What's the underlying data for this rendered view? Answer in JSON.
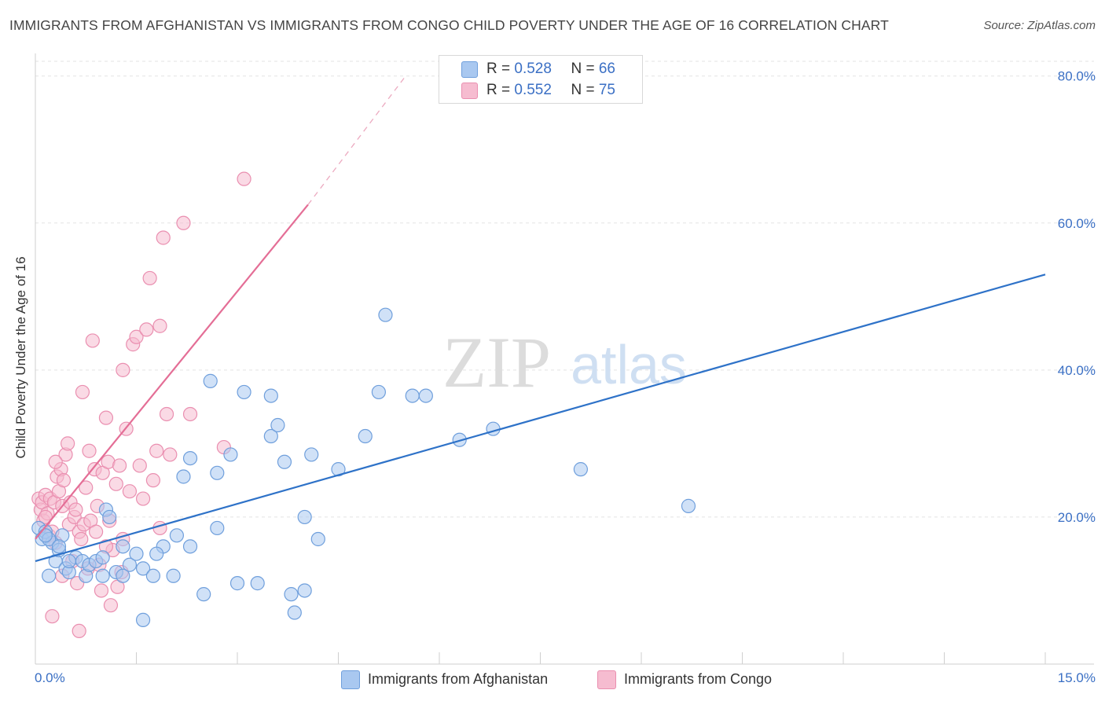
{
  "title": "IMMIGRANTS FROM AFGHANISTAN VS IMMIGRANTS FROM CONGO CHILD POVERTY UNDER THE AGE OF 16 CORRELATION CHART",
  "source": "Source: ZipAtlas.com",
  "watermark": {
    "zip": "ZIP",
    "atlas": "atlas"
  },
  "legend_stats": [
    {
      "r_label": "R = ",
      "r_value": "0.528",
      "n_label": "N = ",
      "n_value": "66"
    },
    {
      "r_label": "R = ",
      "r_value": "0.552",
      "n_label": "N = ",
      "n_value": "75"
    }
  ],
  "colors": {
    "blue_fill": "#a9c8f0",
    "blue_stroke": "#6f9fdc",
    "blue_line": "#2e72c8",
    "pink_fill": "#f6bcd0",
    "pink_stroke": "#ea8fb0",
    "pink_line": "#e46e96",
    "tick_text": "#3a6fc4",
    "grid": "#e3e3e3"
  },
  "chart_data": {
    "type": "scatter",
    "title": "IMMIGRANTS FROM AFGHANISTAN VS IMMIGRANTS FROM CONGO CHILD POVERTY UNDER THE AGE OF 16 CORRELATION CHART",
    "xlabel": "",
    "ylabel": "Child Poverty Under the Age of 16",
    "xlim": [
      0,
      15
    ],
    "ylim": [
      0,
      82
    ],
    "x_tick_labels": [
      "0.0%",
      "15.0%"
    ],
    "y_ticks": [
      20,
      40,
      60,
      80
    ],
    "y_tick_labels": [
      "20.0%",
      "40.0%",
      "60.0%",
      "80.0%"
    ],
    "legend": [
      "Immigrants from Afghanistan",
      "Immigrants from Congo"
    ],
    "series": [
      {
        "name": "Immigrants from Afghanistan",
        "r": 0.528,
        "n": 66,
        "trend": {
          "x": [
            0,
            15
          ],
          "y": [
            14.0,
            53.0
          ]
        },
        "points": [
          [
            0.05,
            18.5
          ],
          [
            0.1,
            17.0
          ],
          [
            0.15,
            18.0
          ],
          [
            0.2,
            12.0
          ],
          [
            0.25,
            16.5
          ],
          [
            0.3,
            14.0
          ],
          [
            0.35,
            15.5
          ],
          [
            0.4,
            17.5
          ],
          [
            0.45,
            13.0
          ],
          [
            0.5,
            12.5
          ],
          [
            0.6,
            14.5
          ],
          [
            0.7,
            14.0
          ],
          [
            0.75,
            12.0
          ],
          [
            0.8,
            13.5
          ],
          [
            0.9,
            14.0
          ],
          [
            1.0,
            14.5
          ],
          [
            1.05,
            21.0
          ],
          [
            1.1,
            20.0
          ],
          [
            1.2,
            12.5
          ],
          [
            1.3,
            16.0
          ],
          [
            1.4,
            13.5
          ],
          [
            1.5,
            15.0
          ],
          [
            1.6,
            13.0
          ],
          [
            1.75,
            12.0
          ],
          [
            1.9,
            16.0
          ],
          [
            2.1,
            17.5
          ],
          [
            2.2,
            25.5
          ],
          [
            2.3,
            28.0
          ],
          [
            2.3,
            16.0
          ],
          [
            2.5,
            9.5
          ],
          [
            2.6,
            38.5
          ],
          [
            2.7,
            26.0
          ],
          [
            2.7,
            18.5
          ],
          [
            2.9,
            28.5
          ],
          [
            3.0,
            11.0
          ],
          [
            3.1,
            37.0
          ],
          [
            3.3,
            11.0
          ],
          [
            3.5,
            31.0
          ],
          [
            3.5,
            36.5
          ],
          [
            3.6,
            32.5
          ],
          [
            3.7,
            27.5
          ],
          [
            3.8,
            9.5
          ],
          [
            4.0,
            20.0
          ],
          [
            4.1,
            28.5
          ],
          [
            4.2,
            17.0
          ],
          [
            4.5,
            26.5
          ],
          [
            4.9,
            31.0
          ],
          [
            5.1,
            37.0
          ],
          [
            5.2,
            47.5
          ],
          [
            5.6,
            36.5
          ],
          [
            5.8,
            36.5
          ],
          [
            6.3,
            30.5
          ],
          [
            6.8,
            32.0
          ],
          [
            8.1,
            26.5
          ],
          [
            9.7,
            21.5
          ],
          [
            4.0,
            10.0
          ],
          [
            1.0,
            12.0
          ],
          [
            1.3,
            12.0
          ],
          [
            0.2,
            17.0
          ],
          [
            0.15,
            17.5
          ],
          [
            0.35,
            16.0
          ],
          [
            2.05,
            12.0
          ],
          [
            1.6,
            6.0
          ],
          [
            3.85,
            7.0
          ],
          [
            1.8,
            15.0
          ],
          [
            0.5,
            14.0
          ]
        ]
      },
      {
        "name": "Immigrants from Congo",
        "r": 0.552,
        "n": 75,
        "trend": {
          "x": [
            0,
            4.05
          ],
          "y": [
            17.0,
            62.5
          ]
        },
        "trend_dashed": {
          "x": [
            4.05,
            5.5
          ],
          "y": [
            62.5,
            80.0
          ]
        },
        "points": [
          [
            0.05,
            22.5
          ],
          [
            0.08,
            21.0
          ],
          [
            0.1,
            22.0
          ],
          [
            0.12,
            19.5
          ],
          [
            0.15,
            23.0
          ],
          [
            0.18,
            20.5
          ],
          [
            0.2,
            17.5
          ],
          [
            0.22,
            22.5
          ],
          [
            0.25,
            18.0
          ],
          [
            0.28,
            22.0
          ],
          [
            0.3,
            16.5
          ],
          [
            0.32,
            25.5
          ],
          [
            0.35,
            23.5
          ],
          [
            0.38,
            26.5
          ],
          [
            0.4,
            21.5
          ],
          [
            0.42,
            25.0
          ],
          [
            0.45,
            28.5
          ],
          [
            0.48,
            30.0
          ],
          [
            0.5,
            19.0
          ],
          [
            0.52,
            22.0
          ],
          [
            0.55,
            14.0
          ],
          [
            0.58,
            20.0
          ],
          [
            0.6,
            21.0
          ],
          [
            0.62,
            11.0
          ],
          [
            0.65,
            18.0
          ],
          [
            0.68,
            17.0
          ],
          [
            0.7,
            37.0
          ],
          [
            0.72,
            19.0
          ],
          [
            0.75,
            24.0
          ],
          [
            0.78,
            13.0
          ],
          [
            0.8,
            29.0
          ],
          [
            0.82,
            19.5
          ],
          [
            0.85,
            44.0
          ],
          [
            0.88,
            26.5
          ],
          [
            0.9,
            18.0
          ],
          [
            0.92,
            21.5
          ],
          [
            0.95,
            13.5
          ],
          [
            0.98,
            10.0
          ],
          [
            1.0,
            26.0
          ],
          [
            1.05,
            33.5
          ],
          [
            1.08,
            27.5
          ],
          [
            1.1,
            19.5
          ],
          [
            1.12,
            8.0
          ],
          [
            1.15,
            15.5
          ],
          [
            1.2,
            24.5
          ],
          [
            1.22,
            10.5
          ],
          [
            1.25,
            27.0
          ],
          [
            1.28,
            12.5
          ],
          [
            1.3,
            40.0
          ],
          [
            1.35,
            32.0
          ],
          [
            1.4,
            23.5
          ],
          [
            1.45,
            43.5
          ],
          [
            1.5,
            44.5
          ],
          [
            1.55,
            27.0
          ],
          [
            1.6,
            22.5
          ],
          [
            1.65,
            45.5
          ],
          [
            1.7,
            52.5
          ],
          [
            1.75,
            25.0
          ],
          [
            1.8,
            29.0
          ],
          [
            1.85,
            46.0
          ],
          [
            1.9,
            58.0
          ],
          [
            1.95,
            34.0
          ],
          [
            2.0,
            28.5
          ],
          [
            2.2,
            60.0
          ],
          [
            2.3,
            34.0
          ],
          [
            2.8,
            29.5
          ],
          [
            3.1,
            66.0
          ],
          [
            1.3,
            17.0
          ],
          [
            0.25,
            6.5
          ],
          [
            0.65,
            4.5
          ],
          [
            1.85,
            18.5
          ],
          [
            1.05,
            16.0
          ],
          [
            0.4,
            12.0
          ],
          [
            0.15,
            20.0
          ],
          [
            0.3,
            27.5
          ]
        ]
      }
    ]
  },
  "legend_bottom": [
    {
      "label": "Immigrants from Afghanistan"
    },
    {
      "label": "Immigrants from Congo"
    }
  ]
}
